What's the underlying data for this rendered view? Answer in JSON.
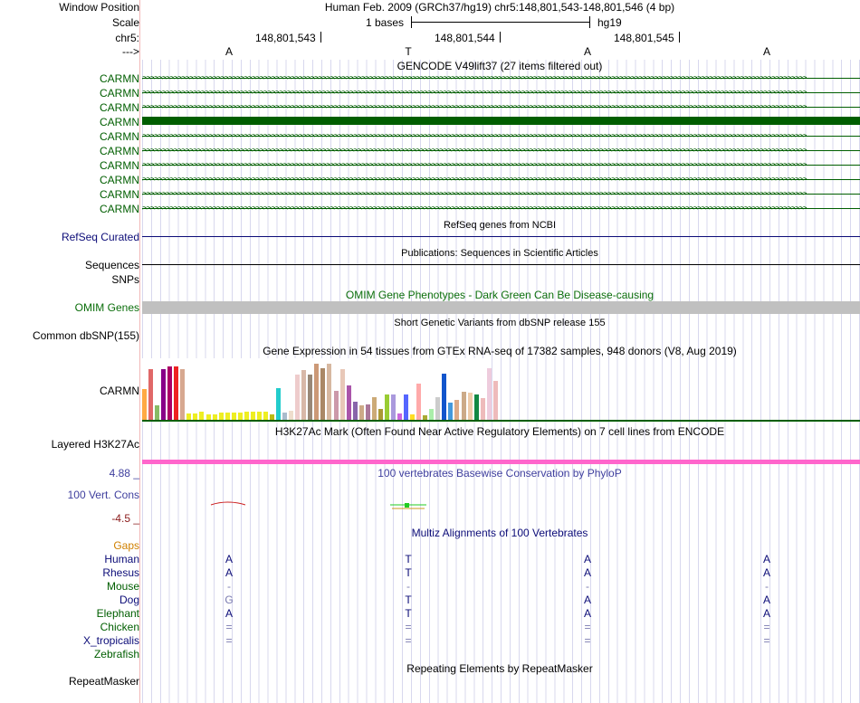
{
  "header": {
    "window_position_label": "Window Position",
    "window_position_value": "Human Feb. 2009 (GRCh37/hg19)   chr5:148,801,543-148,801,546 (4 bp)",
    "scale_label": "Scale",
    "scale_bases": "1 bases",
    "scale_db": "hg19",
    "chrom_label": "chr5:",
    "positions": [
      "148,801,543",
      "148,801,544",
      "148,801,545"
    ],
    "strand_label": "--->",
    "bases": [
      "A",
      "T",
      "A",
      "A"
    ]
  },
  "tracks": {
    "gencode": {
      "title": "GENCODE V49lift37 (27 items filtered out)",
      "items": [
        "CARMN",
        "CARMN",
        "CARMN",
        "CARMN",
        "CARMN",
        "CARMN",
        "CARMN",
        "CARMN",
        "CARMN",
        "CARMN"
      ],
      "color": "#005e00"
    },
    "refseq": {
      "title": "RefSeq genes from NCBI",
      "label": "RefSeq Curated",
      "color": "#0c0c78"
    },
    "pubs": {
      "title": "Publications: Sequences in Scientific Articles",
      "label": "Sequences"
    },
    "snps_label": "SNPs",
    "omim": {
      "title": "OMIM Gene Phenotypes - Dark Green Can Be Disease-causing",
      "label": "OMIM Genes",
      "color": "#0b6e0b"
    },
    "dbsnp": {
      "title": "Short Genetic Variants from dbSNP release 155",
      "label": "Common dbSNP(155)"
    },
    "gtex": {
      "title": "Gene Expression in 54 tissues from GTEx RNA-seq of 17382 samples, 948 donors (V8, Aug 2019)",
      "label": "CARMN",
      "values": [
        0.55,
        0.9,
        0.25,
        0.9,
        0.95,
        0.95,
        0.9,
        0.12,
        0.12,
        0.14,
        0.1,
        0.1,
        0.13,
        0.13,
        0.13,
        0.13,
        0.14,
        0.14,
        0.14,
        0.14,
        0.1,
        0.56,
        0.13,
        0.16,
        0.8,
        0.88,
        0.8,
        1.0,
        0.92,
        1.0,
        0.52,
        0.9,
        0.62,
        0.32,
        0.25,
        0.27,
        0.4,
        0.2,
        0.45,
        0.45,
        0.12,
        0.45,
        0.1,
        0.64,
        0.08,
        0.2,
        0.4,
        0.83,
        0.3,
        0.35,
        0.5,
        0.48,
        0.45,
        0.38
      ],
      "colors": [
        "#ffaa44",
        "#e06868",
        "#88bb66",
        "#880088",
        "#aa0066",
        "#ee2222",
        "#d7a890",
        "#eeee22",
        "#eeee22",
        "#eeee22",
        "#eeee22",
        "#eeee22",
        "#eeee22",
        "#eeee22",
        "#eeee22",
        "#eeee22",
        "#eeee22",
        "#eeee22",
        "#eeee22",
        "#eeee22",
        "#bbbb11",
        "#22cccc",
        "#aabbcc",
        "#eeddcc",
        "#eecccc",
        "#d8b8a8",
        "#998877",
        "#cc9977",
        "#aa8866",
        "#d7b8a0",
        "#cc99aa",
        "#e8c8b8",
        "#aa55aa",
        "#8866aa",
        "#ccaa88",
        "#aa7799",
        "#ccaa77",
        "#aa9933",
        "#99cc33",
        "#aa99dd",
        "#cc66dd",
        "#5566ff",
        "#ffdd22",
        "#ffaaaa",
        "#aaaa33",
        "#aaeeaa",
        "#cccccc",
        "#1155cc",
        "#4499dd",
        "#ddaa88",
        "#ccaa88",
        "#eeccaa",
        "#118844",
        "#eebbbb"
      ],
      "extra": [
        {
          "value": 0.92,
          "color": "#eeccdd"
        },
        {
          "value": 0.7,
          "color": "#eebbbb"
        }
      ]
    },
    "h3k27ac": {
      "title": "H3K27Ac Mark (Often Found Near Active Regulatory Elements) on 7 cell lines from ENCODE",
      "label": "Layered H3K27Ac",
      "color": "#ff66cc"
    },
    "phylop": {
      "title": "100 vertebrates Basewise Conservation by PhyloP",
      "label": "100 Vert. Cons",
      "max": "4.88 _",
      "min": "-4.5 _"
    },
    "multiz": {
      "title": "Multiz Alignments of 100 Vertebrates",
      "gaps_label": "Gaps",
      "species": [
        {
          "name": "Human",
          "color": "#0c0c78",
          "bases": [
            "A",
            "T",
            "A",
            "A"
          ]
        },
        {
          "name": "Rhesus",
          "color": "#0c0c78",
          "bases": [
            "A",
            "T",
            "A",
            "A"
          ]
        },
        {
          "name": "Mouse",
          "color": "#005e00",
          "bases": [
            "-",
            "-",
            "-",
            "-"
          ]
        },
        {
          "name": "Dog",
          "color": "#0c0c78",
          "bases": [
            "G",
            "T",
            "A",
            "A"
          ]
        },
        {
          "name": "Elephant",
          "color": "#005e00",
          "bases": [
            "A",
            "T",
            "A",
            "A"
          ]
        },
        {
          "name": "Chicken",
          "color": "#005e00",
          "bases": [
            "=",
            "=",
            "=",
            "="
          ]
        },
        {
          "name": "X_tropicalis",
          "color": "#0c0c78",
          "bases": [
            "=",
            "=",
            "=",
            "="
          ]
        },
        {
          "name": "Zebrafish",
          "color": "#005e00",
          "bases": [
            "",
            "",
            "",
            ""
          ]
        }
      ]
    },
    "repeatmasker": {
      "title": "Repeating Elements by RepeatMasker",
      "label": "RepeatMasker"
    }
  }
}
